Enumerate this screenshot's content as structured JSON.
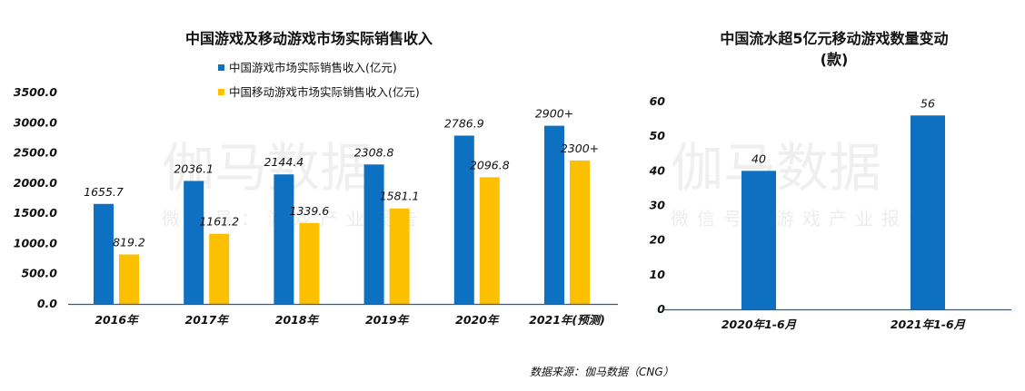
{
  "colors": {
    "blue": "#0e70c0",
    "yellow": "#fcc000",
    "axis": "#1f5fa8",
    "text": "#111111"
  },
  "watermark": {
    "big": "伽马数据",
    "small": "微信号：游戏产业报告"
  },
  "source": "数据来源：伽马数据（CNG）",
  "chart_data": [
    {
      "type": "bar",
      "title": "中国游戏及移动游戏市场实际销售收入",
      "categories": [
        "2016年",
        "2017年",
        "2018年",
        "2019年",
        "2020年",
        "2021年(预测)"
      ],
      "series": [
        {
          "name": "中国游戏市场实际销售收入(亿元)",
          "values": [
            1655.7,
            2036.1,
            2144.4,
            2308.8,
            2786.9,
            2950
          ],
          "labels": [
            "1655.7",
            "2036.1",
            "2144.4",
            "2308.8",
            "2786.9",
            "2900+"
          ]
        },
        {
          "name": "中国移动游戏市场实际销售收入(亿元)",
          "values": [
            819.2,
            1161.2,
            1339.6,
            1581.1,
            2096.8,
            2375
          ],
          "labels": [
            "819.2",
            "1161.2",
            "1339.6",
            "1581.1",
            "2096.8",
            "2300+"
          ]
        }
      ],
      "yticks": [
        "0.0",
        "500.0",
        "1000.0",
        "1500.0",
        "2000.0",
        "2500.0",
        "3000.0",
        "3500.0"
      ],
      "ylim": [
        0,
        3500
      ],
      "legend": "top-center",
      "grid": false
    },
    {
      "type": "bar",
      "title": "中国流水超5亿元移动游戏数量变动",
      "subtitle": "(款)",
      "categories": [
        "2020年1-6月",
        "2021年1-6月"
      ],
      "series": [
        {
          "values": [
            40,
            56
          ],
          "labels": [
            "40",
            "56"
          ]
        }
      ],
      "yticks": [
        "0",
        "10",
        "20",
        "30",
        "40",
        "50",
        "60"
      ],
      "ylim": [
        0,
        60
      ],
      "grid": false
    }
  ]
}
